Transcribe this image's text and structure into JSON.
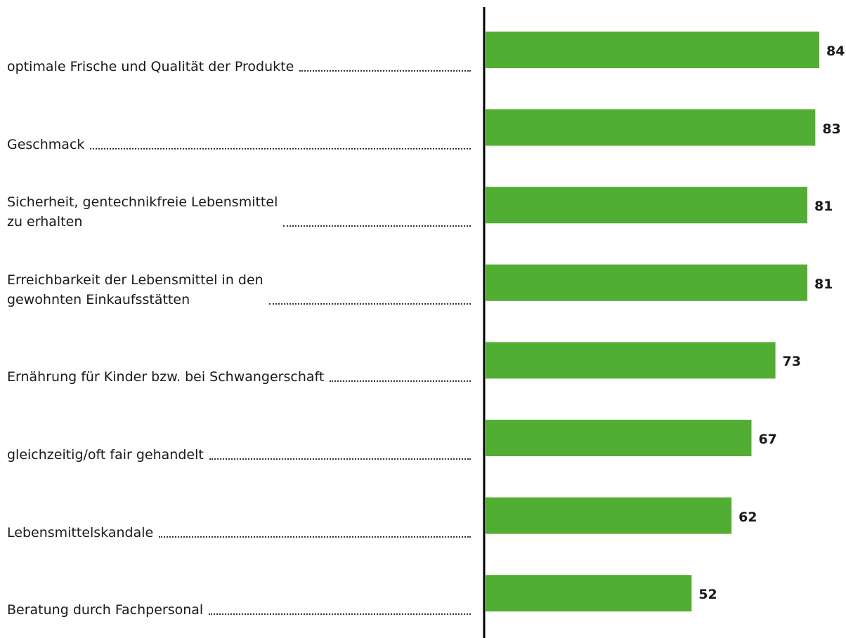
{
  "chart_data": {
    "type": "bar",
    "orientation": "horizontal",
    "categories": [
      "optimale Frische und Qualität der Produkte",
      "Geschmack",
      "Sicherheit, gentechnikfreie Lebensmittel\nzu erhalten",
      "Erreichbarkeit der Lebensmittel in den\ngewohnten Einkaufsstätten",
      "Ernährung für Kinder bzw. bei Schwangerschaft",
      "gleichzeitig/oft fair gehandelt",
      "Lebensmittelskandale",
      "Beratung durch Fachpersonal"
    ],
    "values": [
      84,
      83,
      81,
      81,
      73,
      67,
      62,
      52
    ],
    "color": "#52ae32"
  }
}
